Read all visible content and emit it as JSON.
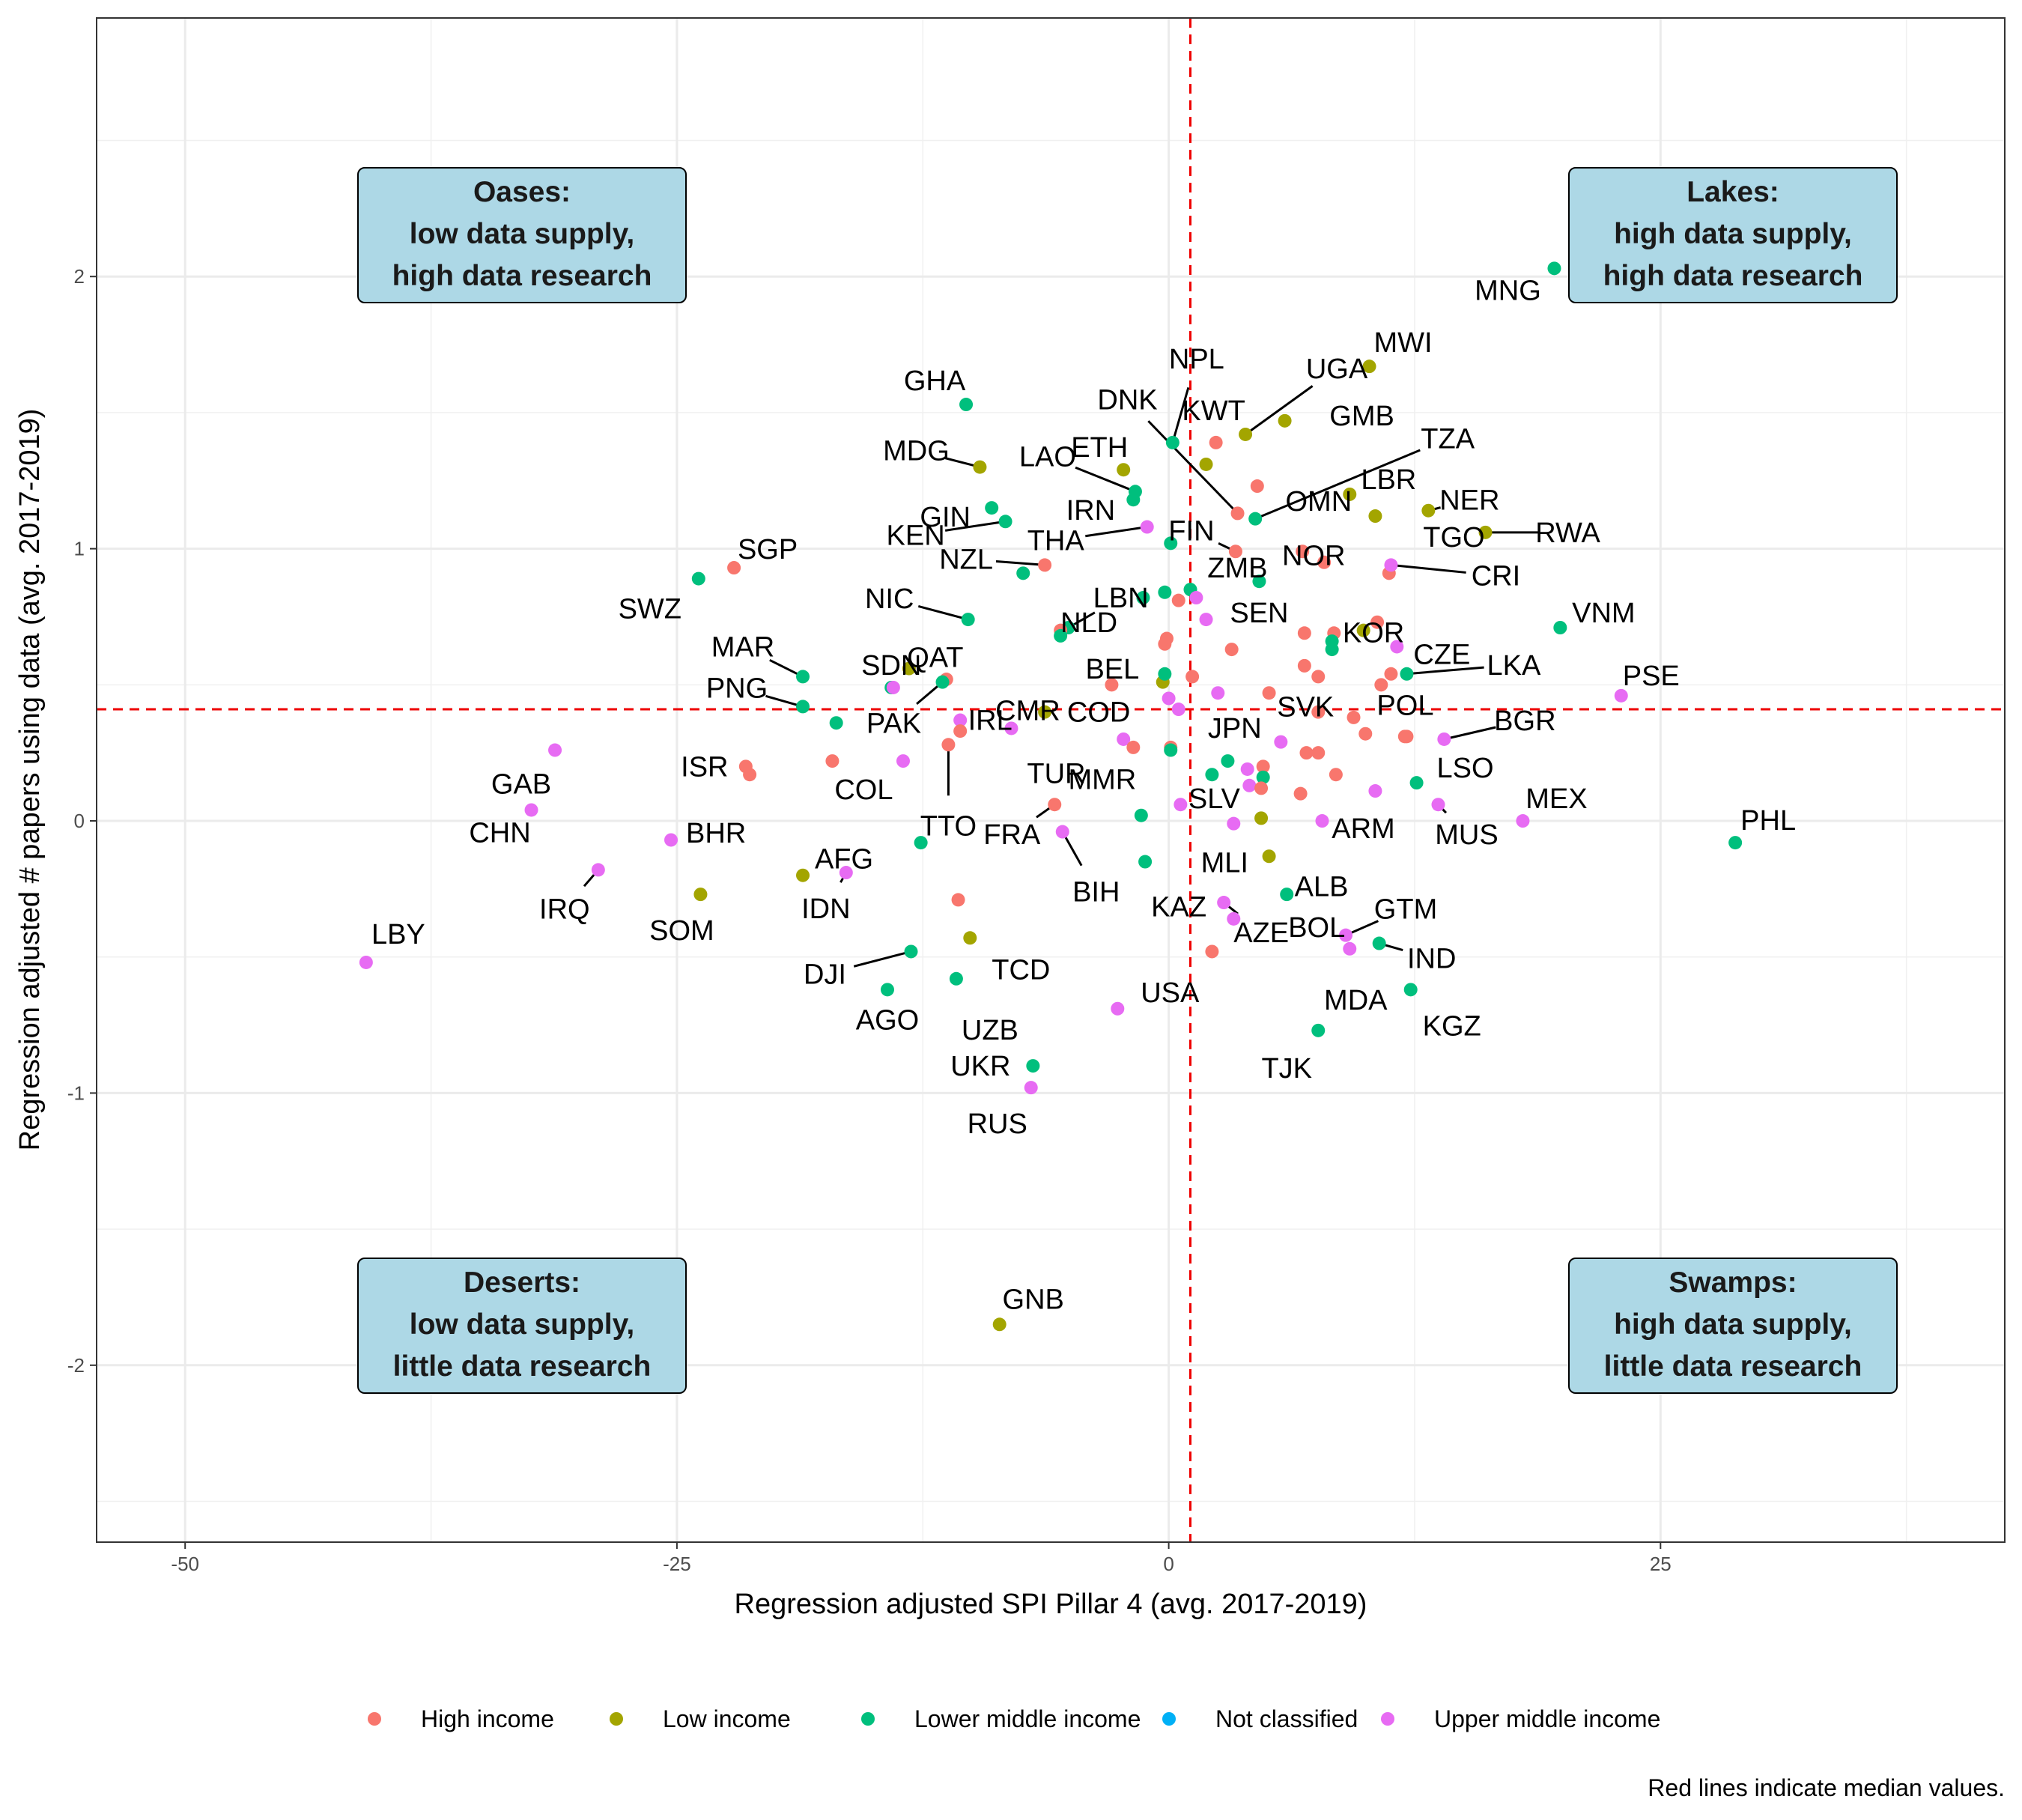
{
  "chart_data": {
    "type": "scatter",
    "xlabel": "Regression adjusted SPI Pillar 4 (avg. 2017-2019)",
    "ylabel": "Regression adjusted # papers using data (avg. 2017-2019)",
    "xlim": [
      -54.5,
      42.5
    ],
    "ylim": [
      -2.65,
      2.95
    ],
    "xticks": [
      -50,
      -25,
      0,
      25
    ],
    "yticks": [
      -2,
      -1,
      0,
      1,
      2
    ],
    "grid": true,
    "legend_position": "bottom",
    "caption": "Red lines indicate median values.",
    "median_lines": {
      "x": 1.1,
      "y": 0.41,
      "color": "#ee0000"
    },
    "colors": {
      "High income": "#f8766d",
      "Low income": "#a3a500",
      "Lower middle income": "#00bf7d",
      "Not classified": "#00b0f6",
      "Upper middle income": "#e76bf3"
    },
    "legend": [
      "High income",
      "Low income",
      "Lower middle income",
      "Not classified",
      "Upper middle income"
    ],
    "quadrants": [
      {
        "title": "Oases:",
        "lines": [
          "low data supply,",
          "high data research"
        ]
      },
      {
        "title": "Lakes:",
        "lines": [
          "high data supply,",
          "high data research"
        ]
      },
      {
        "title": "Deserts:",
        "lines": [
          "low data supply,",
          "little data research"
        ]
      },
      {
        "title": "Swamps:",
        "lines": [
          "high data supply,",
          "little data research"
        ]
      }
    ],
    "points": [
      {
        "x": 19.6,
        "y": 2.03,
        "g": "Lower middle income",
        "label": "MNG"
      },
      {
        "x": 10.2,
        "y": 1.67,
        "g": "Low income",
        "label": "MWI"
      },
      {
        "x": -10.3,
        "y": 1.53,
        "g": "Lower middle income",
        "label": "GHA"
      },
      {
        "x": 3.9,
        "y": 1.42,
        "g": "Low income",
        "label": "UGA"
      },
      {
        "x": 5.9,
        "y": 1.47,
        "g": "Low income",
        "label": "GMB"
      },
      {
        "x": 0.2,
        "y": 1.39,
        "g": "Lower middle income",
        "label": "NPL"
      },
      {
        "x": 2.4,
        "y": 1.39,
        "g": "High income",
        "label": "KWT"
      },
      {
        "x": 1.9,
        "y": 1.31,
        "g": "Low income"
      },
      {
        "x": 4.5,
        "y": 1.23,
        "g": "High income",
        "label": "OMN"
      },
      {
        "x": -9.6,
        "y": 1.3,
        "g": "Low income",
        "label": "MDG"
      },
      {
        "x": -2.3,
        "y": 1.29,
        "g": "Low income",
        "label": "ETH"
      },
      {
        "x": -1.7,
        "y": 1.21,
        "g": "Lower middle income",
        "label": "LAO"
      },
      {
        "x": -1.8,
        "y": 1.18,
        "g": "Lower middle income",
        "label": "IRN"
      },
      {
        "x": -9.0,
        "y": 1.15,
        "g": "Lower middle income",
        "label": "GIN"
      },
      {
        "x": -8.3,
        "y": 1.1,
        "g": "Lower middle income",
        "label": "KEN"
      },
      {
        "x": 3.5,
        "y": 1.13,
        "g": "High income",
        "label": "DNK"
      },
      {
        "x": 4.4,
        "y": 1.11,
        "g": "Lower middle income",
        "label": "TZA"
      },
      {
        "x": 9.2,
        "y": 1.2,
        "g": "Low income",
        "label": "LBR"
      },
      {
        "x": 10.5,
        "y": 1.12,
        "g": "Low income",
        "label": "TGO"
      },
      {
        "x": 13.2,
        "y": 1.14,
        "g": "Low income",
        "label": "NER"
      },
      {
        "x": 16.1,
        "y": 1.06,
        "g": "Low income",
        "label": "RWA"
      },
      {
        "x": -1.1,
        "y": 1.08,
        "g": "Upper middle income",
        "label": "THA"
      },
      {
        "x": 0.1,
        "y": 1.02,
        "g": "Lower middle income"
      },
      {
        "x": 3.4,
        "y": 0.99,
        "g": "High income",
        "label": "FIN"
      },
      {
        "x": 6.8,
        "y": 0.99,
        "g": "High income",
        "label": "NOR"
      },
      {
        "x": 7.9,
        "y": 0.95,
        "g": "High income"
      },
      {
        "x": -6.3,
        "y": 0.94,
        "g": "High income",
        "label": "NZL"
      },
      {
        "x": -7.4,
        "y": 0.91,
        "g": "Lower middle income"
      },
      {
        "x": -22.1,
        "y": 0.93,
        "g": "High income",
        "label": "SGP"
      },
      {
        "x": -23.9,
        "y": 0.89,
        "g": "Lower middle income",
        "label": "SWZ"
      },
      {
        "x": 11.2,
        "y": 0.91,
        "g": "High income"
      },
      {
        "x": 11.3,
        "y": 0.94,
        "g": "Upper middle income",
        "label": "CRI"
      },
      {
        "x": 4.6,
        "y": 0.88,
        "g": "Lower middle income",
        "label": "SEN"
      },
      {
        "x": -1.3,
        "y": 0.82,
        "g": "Lower middle income"
      },
      {
        "x": -0.2,
        "y": 0.84,
        "g": "Lower middle income"
      },
      {
        "x": 0.5,
        "y": 0.81,
        "g": "High income"
      },
      {
        "x": 1.1,
        "y": 0.85,
        "g": "Lower middle income"
      },
      {
        "x": 1.4,
        "y": 0.82,
        "g": "Upper middle income",
        "label": "ZMB"
      },
      {
        "x": -10.2,
        "y": 0.74,
        "g": "Lower middle income",
        "label": "NIC"
      },
      {
        "x": 1.9,
        "y": 0.74,
        "g": "Upper middle income"
      },
      {
        "x": -5.1,
        "y": 0.71,
        "g": "Lower middle income",
        "label": "LBN"
      },
      {
        "x": -5.5,
        "y": 0.7,
        "g": "High income"
      },
      {
        "x": -5.5,
        "y": 0.68,
        "g": "Lower middle income",
        "label": "NLD"
      },
      {
        "x": -0.2,
        "y": 0.65,
        "g": "High income"
      },
      {
        "x": -0.1,
        "y": 0.67,
        "g": "High income"
      },
      {
        "x": 6.9,
        "y": 0.69,
        "g": "High income"
      },
      {
        "x": 8.4,
        "y": 0.69,
        "g": "High income"
      },
      {
        "x": 8.3,
        "y": 0.66,
        "g": "Lower middle income"
      },
      {
        "x": 8.3,
        "y": 0.63,
        "g": "Lower middle income"
      },
      {
        "x": 9.9,
        "y": 0.7,
        "g": "Low income"
      },
      {
        "x": 10.6,
        "y": 0.73,
        "g": "High income",
        "label": "KOR"
      },
      {
        "x": 19.9,
        "y": 0.71,
        "g": "Lower middle income",
        "label": "VNM"
      },
      {
        "x": 3.2,
        "y": 0.63,
        "g": "High income"
      },
      {
        "x": 11.6,
        "y": 0.64,
        "g": "Upper middle income",
        "label": "CZE"
      },
      {
        "x": -18.6,
        "y": 0.53,
        "g": "Lower middle income",
        "label": "MAR"
      },
      {
        "x": -14.1,
        "y": 0.49,
        "g": "Lower middle income",
        "label": "SDN"
      },
      {
        "x": -14.0,
        "y": 0.49,
        "g": "Upper middle income"
      },
      {
        "x": -13.2,
        "y": 0.56,
        "g": "Low income",
        "label": "QAT"
      },
      {
        "x": -11.3,
        "y": 0.52,
        "g": "High income"
      },
      {
        "x": -11.5,
        "y": 0.51,
        "g": "Lower middle income",
        "label": "PAK"
      },
      {
        "x": -2.9,
        "y": 0.5,
        "g": "High income",
        "label": "CMR"
      },
      {
        "x": -0.3,
        "y": 0.51,
        "g": "Low income"
      },
      {
        "x": -0.2,
        "y": 0.54,
        "g": "Lower middle income",
        "label": "BEL"
      },
      {
        "x": 1.2,
        "y": 0.53,
        "g": "High income"
      },
      {
        "x": 2.5,
        "y": 0.47,
        "g": "Upper middle income"
      },
      {
        "x": 5.1,
        "y": 0.47,
        "g": "High income"
      },
      {
        "x": 6.9,
        "y": 0.57,
        "g": "High income"
      },
      {
        "x": 7.6,
        "y": 0.53,
        "g": "High income"
      },
      {
        "x": 10.8,
        "y": 0.5,
        "g": "High income"
      },
      {
        "x": 11.3,
        "y": 0.54,
        "g": "High income"
      },
      {
        "x": 12.1,
        "y": 0.54,
        "g": "Lower middle income",
        "label": "LKA"
      },
      {
        "x": 23.0,
        "y": 0.46,
        "g": "Upper middle income",
        "label": "PSE"
      },
      {
        "x": -18.6,
        "y": 0.42,
        "g": "Lower middle income",
        "label": "PNG"
      },
      {
        "x": -16.9,
        "y": 0.36,
        "g": "Lower middle income"
      },
      {
        "x": -10.6,
        "y": 0.37,
        "g": "Upper middle income",
        "label": "IRL"
      },
      {
        "x": -10.6,
        "y": 0.33,
        "g": "High income"
      },
      {
        "x": -11.2,
        "y": 0.28,
        "g": "High income",
        "label": "TTO"
      },
      {
        "x": -8.0,
        "y": 0.34,
        "g": "Upper middle income",
        "label": "TUR"
      },
      {
        "x": -6.3,
        "y": 0.4,
        "g": "Low income",
        "label": "COD"
      },
      {
        "x": -2.3,
        "y": 0.3,
        "g": "Upper middle income"
      },
      {
        "x": -1.8,
        "y": 0.27,
        "g": "High income"
      },
      {
        "x": 0.0,
        "y": 0.45,
        "g": "Upper middle income"
      },
      {
        "x": 0.5,
        "y": 0.41,
        "g": "Upper middle income",
        "label": "JPN"
      },
      {
        "x": 0.1,
        "y": 0.27,
        "g": "High income"
      },
      {
        "x": 0.1,
        "y": 0.26,
        "g": "Lower middle income"
      },
      {
        "x": 5.7,
        "y": 0.29,
        "g": "Upper middle income"
      },
      {
        "x": 7.6,
        "y": 0.4,
        "g": "High income",
        "label": "SVK"
      },
      {
        "x": 9.4,
        "y": 0.38,
        "g": "High income"
      },
      {
        "x": 10.0,
        "y": 0.32,
        "g": "High income"
      },
      {
        "x": 12.0,
        "y": 0.31,
        "g": "High income"
      },
      {
        "x": 12.1,
        "y": 0.31,
        "g": "High income",
        "label": "POL"
      },
      {
        "x": 14.0,
        "y": 0.3,
        "g": "Upper middle income",
        "label": "BGR"
      },
      {
        "x": -31.2,
        "y": 0.26,
        "g": "Upper middle income",
        "label": "GAB"
      },
      {
        "x": -21.5,
        "y": 0.2,
        "g": "High income",
        "label": "ISR"
      },
      {
        "x": -21.3,
        "y": 0.17,
        "g": "High income",
        "label": "BHR"
      },
      {
        "x": -17.1,
        "y": 0.22,
        "g": "High income",
        "label": "COL"
      },
      {
        "x": -13.5,
        "y": 0.22,
        "g": "Upper middle income"
      },
      {
        "x": 3.0,
        "y": 0.22,
        "g": "Lower middle income"
      },
      {
        "x": 2.2,
        "y": 0.17,
        "g": "Lower middle income"
      },
      {
        "x": 4.0,
        "y": 0.19,
        "g": "Upper middle income"
      },
      {
        "x": 4.8,
        "y": 0.2,
        "g": "High income"
      },
      {
        "x": 4.8,
        "y": 0.16,
        "g": "Lower middle income"
      },
      {
        "x": 4.1,
        "y": 0.13,
        "g": "Upper middle income"
      },
      {
        "x": 4.7,
        "y": 0.12,
        "g": "High income"
      },
      {
        "x": 7.0,
        "y": 0.25,
        "g": "High income"
      },
      {
        "x": 7.6,
        "y": 0.25,
        "g": "High income"
      },
      {
        "x": 8.5,
        "y": 0.17,
        "g": "High income"
      },
      {
        "x": 6.7,
        "y": 0.1,
        "g": "High income"
      },
      {
        "x": 10.5,
        "y": 0.11,
        "g": "Upper middle income"
      },
      {
        "x": 12.6,
        "y": 0.14,
        "g": "Lower middle income",
        "label": "LSO"
      },
      {
        "x": -32.4,
        "y": 0.04,
        "g": "Upper middle income",
        "label": "CHN"
      },
      {
        "x": -5.8,
        "y": 0.06,
        "g": "High income",
        "label": "FRA"
      },
      {
        "x": -1.4,
        "y": 0.02,
        "g": "Lower middle income",
        "label": "MMR"
      },
      {
        "x": 0.6,
        "y": 0.06,
        "g": "Upper middle income",
        "label": "SLV"
      },
      {
        "x": 3.3,
        "y": -0.01,
        "g": "Upper middle income",
        "label": "MLI"
      },
      {
        "x": 4.7,
        "y": 0.01,
        "g": "Low income"
      },
      {
        "x": 7.8,
        "y": 0.0,
        "g": "Upper middle income",
        "label": "ARM"
      },
      {
        "x": 13.7,
        "y": 0.06,
        "g": "Upper middle income",
        "label": "MUS"
      },
      {
        "x": 18.0,
        "y": 0.0,
        "g": "Upper middle income",
        "label": "MEX"
      },
      {
        "x": -25.3,
        "y": -0.07,
        "g": "Upper middle income"
      },
      {
        "x": -12.6,
        "y": -0.08,
        "g": "Lower middle income"
      },
      {
        "x": -5.4,
        "y": -0.04,
        "g": "Upper middle income",
        "label": "BIH"
      },
      {
        "x": -1.2,
        "y": -0.15,
        "g": "Lower middle income",
        "label": "KAZ"
      },
      {
        "x": 5.1,
        "y": -0.13,
        "g": "Low income",
        "label": "ALB"
      },
      {
        "x": 28.8,
        "y": -0.08,
        "g": "Lower middle income",
        "label": "PHL"
      },
      {
        "x": -29.0,
        "y": -0.18,
        "g": "Upper middle income",
        "label": "IRQ"
      },
      {
        "x": -18.6,
        "y": -0.2,
        "g": "Low income",
        "label": "AFG"
      },
      {
        "x": -16.4,
        "y": -0.19,
        "g": "Upper middle income",
        "label": "IDN"
      },
      {
        "x": -23.8,
        "y": -0.27,
        "g": "Low income",
        "label": "SOM"
      },
      {
        "x": -10.7,
        "y": -0.29,
        "g": "High income"
      },
      {
        "x": 2.8,
        "y": -0.3,
        "g": "Upper middle income",
        "label": "AZE"
      },
      {
        "x": 3.3,
        "y": -0.36,
        "g": "Upper middle income"
      },
      {
        "x": 6.0,
        "y": -0.27,
        "g": "Lower middle income",
        "label": "BOL"
      },
      {
        "x": -40.8,
        "y": -0.52,
        "g": "Upper middle income",
        "label": "LBY"
      },
      {
        "x": -10.1,
        "y": -0.43,
        "g": "Low income",
        "label": "TCD"
      },
      {
        "x": -13.1,
        "y": -0.48,
        "g": "Lower middle income",
        "label": "DJI"
      },
      {
        "x": 2.2,
        "y": -0.48,
        "g": "High income"
      },
      {
        "x": 9.0,
        "y": -0.42,
        "g": "Upper middle income",
        "label": "GTM"
      },
      {
        "x": 9.2,
        "y": -0.47,
        "g": "Upper middle income",
        "label": "MDA"
      },
      {
        "x": 10.7,
        "y": -0.45,
        "g": "Lower middle income",
        "label": "IND"
      },
      {
        "x": -14.3,
        "y": -0.62,
        "g": "Lower middle income",
        "label": "AGO"
      },
      {
        "x": -10.8,
        "y": -0.58,
        "g": "Lower middle income",
        "label": "UZB"
      },
      {
        "x": -2.6,
        "y": -0.69,
        "g": "Upper middle income",
        "label": "USA"
      },
      {
        "x": 12.3,
        "y": -0.62,
        "g": "Lower middle income",
        "label": "KGZ"
      },
      {
        "x": 7.6,
        "y": -0.77,
        "g": "Lower middle income",
        "label": "TJK"
      },
      {
        "x": -6.9,
        "y": -0.9,
        "g": "Lower middle income",
        "label": "UKR"
      },
      {
        "x": -7.0,
        "y": -0.98,
        "g": "Upper middle income",
        "label": "RUS"
      },
      {
        "x": -8.6,
        "y": -1.85,
        "g": "Low income",
        "label": "GNB"
      }
    ],
    "extra_labels": [
      "SEN"
    ]
  }
}
